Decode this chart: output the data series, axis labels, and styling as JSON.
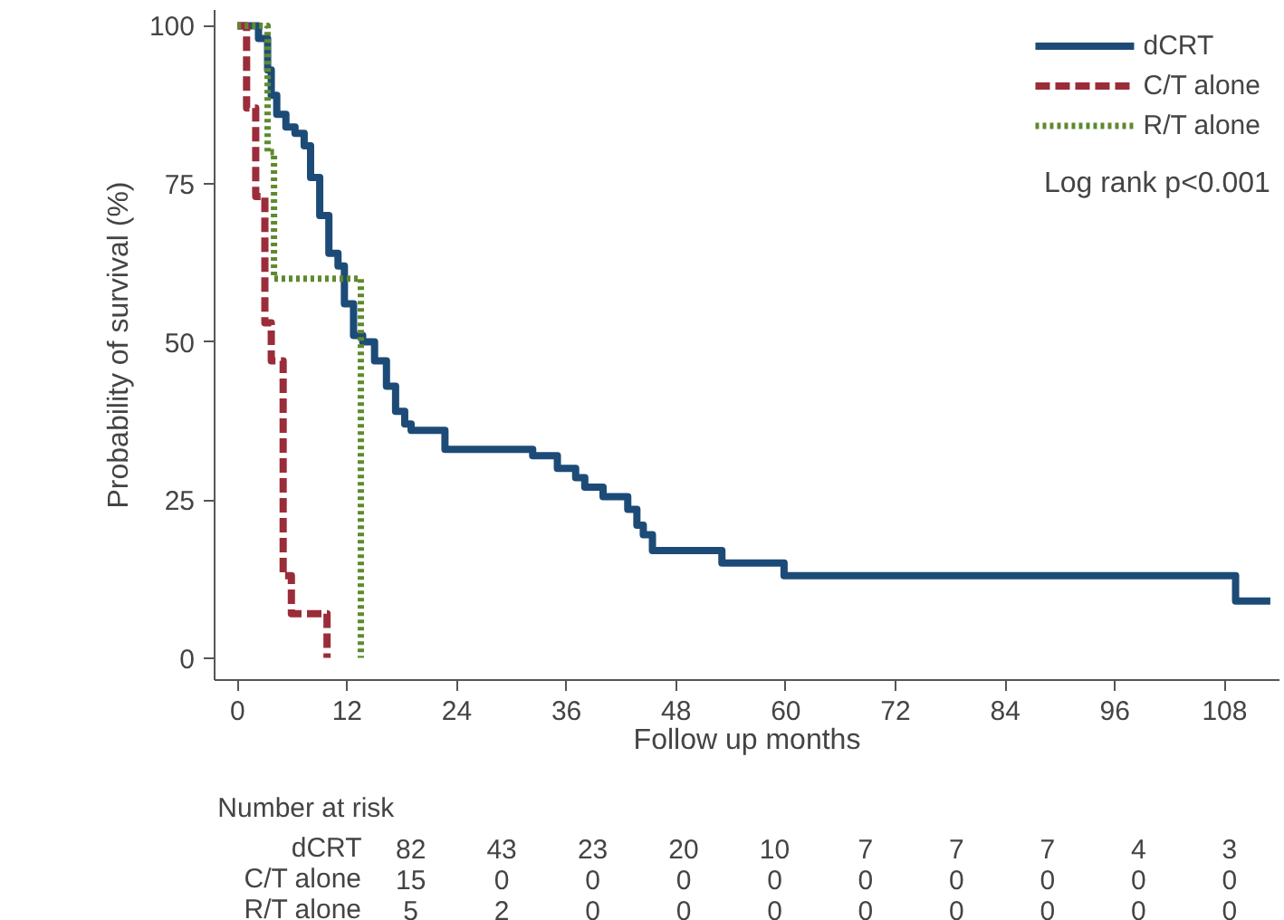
{
  "chart_data": {
    "type": "step",
    "xlabel": "Follow up months",
    "ylabel": "Probability of survival (%)",
    "xlim": [
      -2.5,
      114
    ],
    "ylim": [
      -3.5,
      102.5
    ],
    "xticks": [
      0,
      12,
      24,
      36,
      48,
      60,
      72,
      84,
      96,
      108
    ],
    "yticks": [
      0,
      25,
      50,
      75,
      100
    ],
    "grid": false,
    "legend": "top right",
    "series": [
      {
        "name": "dCRT",
        "color": "#1d4b78",
        "line_style": "solid",
        "x": [
          0,
          2.3,
          3.3,
          3.7,
          4.3,
          5.3,
          6.3,
          7.3,
          8.0,
          9.0,
          10.0,
          11.0,
          11.7,
          12.7,
          13.7,
          15.0,
          16.3,
          17.3,
          18.3,
          19.0,
          22.7,
          32.3,
          35,
          37,
          38,
          40,
          42.7,
          43.7,
          44.4,
          45.4,
          53,
          59.8,
          109.2,
          113
        ],
        "values": [
          100,
          98,
          93,
          89,
          86,
          84,
          83,
          81,
          76,
          70,
          64,
          62,
          56,
          51,
          50,
          47,
          43,
          39,
          37,
          36,
          33,
          32,
          30,
          28.5,
          27,
          25.5,
          23.5,
          21,
          19.5,
          17,
          15,
          13,
          9,
          9
        ]
      },
      {
        "name": "C/T alone",
        "color": "#9b2d3a",
        "line_style": "dashed",
        "x": [
          0,
          1.0,
          2.0,
          3.0,
          3.7,
          5.0,
          5.9,
          9.8
        ],
        "values": [
          100,
          87,
          73,
          53,
          47,
          13,
          7,
          0
        ]
      },
      {
        "name": "R/T alone",
        "color": "#5e8a2e",
        "line_style": "dotted",
        "x": [
          0,
          3.3,
          4.0,
          13.5
        ],
        "values": [
          100,
          80,
          60,
          0
        ]
      }
    ],
    "annotations": [
      "Log rank p<0.001",
      "Number at risk",
      "dCRT",
      "82",
      "43",
      "23",
      "20",
      "10",
      "7",
      "7",
      "7",
      "4",
      "3",
      "C/T alone",
      "15",
      "0",
      "0",
      "0",
      "0",
      "0",
      "0",
      "0",
      "0",
      "0",
      "R/T alone",
      "5",
      "2",
      "0",
      "0",
      "0",
      "0",
      "0",
      "0",
      "0",
      "0"
    ]
  }
}
